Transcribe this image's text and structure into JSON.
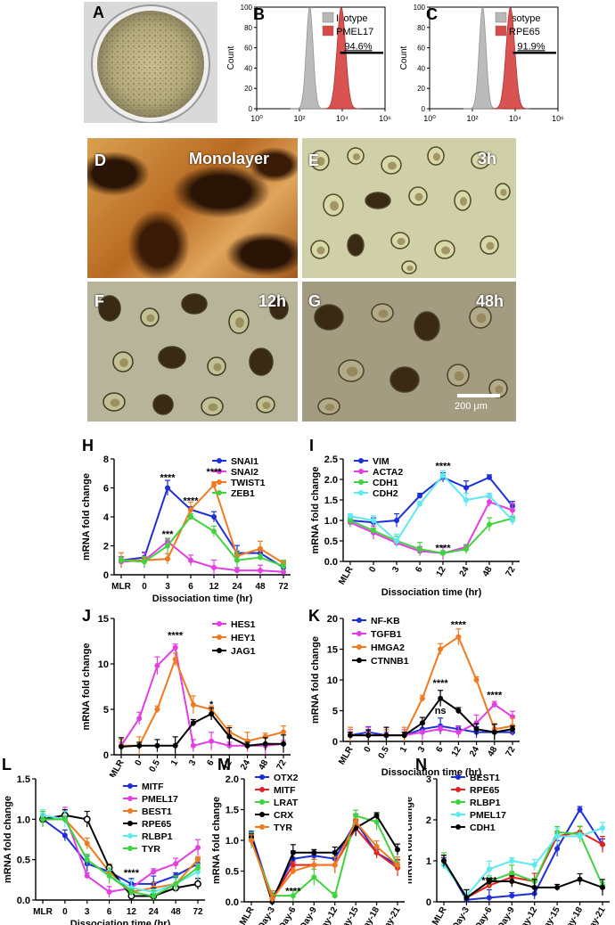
{
  "panel_letters": {
    "A": "A",
    "B": "B",
    "C": "C",
    "D": "D",
    "E": "E",
    "F": "F",
    "G": "G",
    "H": "H",
    "I": "I",
    "J": "J",
    "K": "K",
    "L": "L",
    "M": "M",
    "N": "N"
  },
  "micrographs": {
    "D": {
      "label": "Monolayer"
    },
    "E": {
      "label": "3h"
    },
    "F": {
      "label": "12h"
    },
    "G": {
      "label": "48h",
      "scale_bar": "200 μm"
    }
  },
  "colors": {
    "isotype": "#b8b8b8",
    "pmel17": "#d84a4a",
    "rpe65": "#d84a4a",
    "blue": "#1f2fd6",
    "magenta": "#e23ee2",
    "orange": "#f07a20",
    "green": "#3fd33f",
    "black": "#000000",
    "cyan": "#5ee8f0",
    "red": "#e62020"
  },
  "chart_data": [
    {
      "id": "B",
      "type": "area",
      "ylabel": "Count",
      "xscale": "log",
      "xlim": [
        1,
        1000000
      ],
      "xticks": [
        "10⁰",
        "10²",
        "10⁴",
        "10⁶"
      ],
      "yticks": [
        "0",
        "20",
        "40",
        "60",
        "80",
        "100"
      ],
      "series": [
        {
          "name": "Isotype",
          "peak_x": 300
        },
        {
          "name": "PMEL17",
          "peak_x": 9000
        }
      ],
      "annotation": "94.6%"
    },
    {
      "id": "C",
      "type": "area",
      "ylabel": "Count",
      "xscale": "log",
      "xlim": [
        1,
        1000000
      ],
      "xticks": [
        "10⁰",
        "10²",
        "10⁴",
        "10⁶"
      ],
      "yticks": [
        "0",
        "20",
        "40",
        "60",
        "80",
        "100"
      ],
      "series": [
        {
          "name": "Isotype",
          "peak_x": 300
        },
        {
          "name": "RPE65",
          "peak_x": 6000
        }
      ],
      "annotation": "91.9%"
    },
    {
      "id": "H",
      "type": "line",
      "xlabel": "Dissociation time (hr)",
      "ylabel": "mRNA fold change",
      "categories": [
        "MLR",
        "0",
        "3",
        "6",
        "12",
        "24",
        "48",
        "72"
      ],
      "ylim": [
        0,
        8
      ],
      "yticks": [
        "0",
        "2",
        "4",
        "6",
        "8"
      ],
      "series": [
        {
          "name": "SNAI1",
          "color": "#1f2fd6",
          "values": [
            1.0,
            1.2,
            6.0,
            4.5,
            4.0,
            1.5,
            1.5,
            0.5
          ]
        },
        {
          "name": "SNAI2",
          "color": "#e23ee2",
          "values": [
            0.9,
            1.0,
            2.3,
            1.0,
            0.5,
            0.3,
            0.3,
            0.2
          ]
        },
        {
          "name": "TWIST1",
          "color": "#f07a20",
          "values": [
            1.0,
            1.0,
            1.1,
            4.5,
            6.2,
            1.3,
            1.8,
            0.8
          ]
        },
        {
          "name": "ZEB1",
          "color": "#3fd33f",
          "values": [
            1.0,
            0.9,
            2.0,
            4.0,
            3.0,
            1.0,
            1.2,
            0.6
          ]
        }
      ],
      "annotations": [
        "****",
        "****",
        "****",
        "***"
      ]
    },
    {
      "id": "I",
      "type": "line",
      "xlabel": "Dissociation time (hr)",
      "ylabel": "mRNA fold change",
      "categories": [
        "MLR",
        "0",
        "3",
        "6",
        "12",
        "24",
        "48",
        "72"
      ],
      "ylim": [
        0,
        2.5
      ],
      "yticks": [
        "0.0",
        "0.5",
        "1.0",
        "1.5",
        "2.0",
        "2.5"
      ],
      "series": [
        {
          "name": "VIM",
          "color": "#1f2fd6",
          "values": [
            1.0,
            0.95,
            1.0,
            1.6,
            2.05,
            1.8,
            2.05,
            1.35
          ]
        },
        {
          "name": "ACTA2",
          "color": "#e23ee2",
          "values": [
            0.95,
            0.7,
            0.45,
            0.25,
            0.2,
            0.35,
            1.45,
            1.25
          ]
        },
        {
          "name": "CDH1",
          "color": "#3fd33f",
          "values": [
            1.0,
            0.75,
            0.5,
            0.3,
            0.2,
            0.3,
            0.9,
            1.05
          ]
        },
        {
          "name": "CDH2",
          "color": "#5ee8f0",
          "values": [
            1.1,
            1.0,
            0.5,
            1.4,
            2.1,
            1.5,
            1.6,
            1.0
          ]
        }
      ],
      "annotations": [
        "****",
        "****"
      ]
    },
    {
      "id": "J",
      "type": "line",
      "xlabel": "Dissociation time (hr)",
      "ylabel": "mRNA fold change",
      "categories": [
        "MLR",
        "0",
        "0.5",
        "1",
        "3",
        "6",
        "12",
        "24",
        "48",
        "72"
      ],
      "ylim": [
        0,
        15
      ],
      "yticks": [
        "0",
        "5",
        "10",
        "15"
      ],
      "series": [
        {
          "name": "HES1",
          "color": "#e23ee2",
          "values": [
            1.0,
            4.0,
            9.8,
            11.8,
            1.0,
            1.5,
            1.0,
            1.0,
            1.0,
            1.2
          ]
        },
        {
          "name": "HEY1",
          "color": "#f07a20",
          "values": [
            1.0,
            1.0,
            5.0,
            10.5,
            5.5,
            5.0,
            2.5,
            1.5,
            2.0,
            2.5
          ]
        },
        {
          "name": "JAG1",
          "color": "#000000",
          "values": [
            0.9,
            1.0,
            1.0,
            1.0,
            3.5,
            4.5,
            2.0,
            1.0,
            1.2,
            1.2
          ]
        }
      ],
      "annotations": [
        "****",
        "*"
      ]
    },
    {
      "id": "K",
      "type": "line",
      "xlabel": "Dissociation time (hr)",
      "ylabel": "mRNA fold change",
      "categories": [
        "MLR",
        "0",
        "0.5",
        "1",
        "3",
        "6",
        "12",
        "24",
        "48",
        "72"
      ],
      "ylim": [
        0,
        20
      ],
      "yticks": [
        "0",
        "5",
        "10",
        "15",
        "20"
      ],
      "series": [
        {
          "name": "NF-KB",
          "color": "#1f2fd6",
          "values": [
            1.0,
            1.5,
            1.0,
            1.0,
            2.0,
            2.5,
            2.0,
            1.5,
            1.5,
            1.5
          ]
        },
        {
          "name": "TGFB1",
          "color": "#e23ee2",
          "values": [
            1.0,
            1.0,
            1.0,
            1.0,
            1.5,
            2.0,
            1.5,
            3.0,
            6.0,
            4.0
          ]
        },
        {
          "name": "HMGA2",
          "color": "#f07a20",
          "values": [
            1.0,
            1.0,
            1.0,
            1.0,
            7.0,
            15.0,
            17.0,
            10.0,
            2.0,
            2.5
          ]
        },
        {
          "name": "CTNNB1",
          "color": "#000000",
          "values": [
            1.0,
            1.0,
            1.0,
            1.0,
            3.0,
            7.0,
            5.0,
            2.0,
            1.5,
            2.0
          ]
        }
      ],
      "annotations": [
        "****",
        "****",
        "ns",
        "****"
      ]
    },
    {
      "id": "L",
      "type": "line",
      "xlabel": "Dissociation time (hr)",
      "ylabel": "mRNA fold change",
      "categories": [
        "MLR",
        "0",
        "3",
        "6",
        "12",
        "24",
        "48",
        "72"
      ],
      "ylim": [
        0,
        1.5
      ],
      "yticks": [
        "0.0",
        "0.5",
        "1.0",
        "1.5"
      ],
      "series": [
        {
          "name": "MITF",
          "color": "#1f2fd6",
          "values": [
            1.0,
            0.8,
            0.45,
            0.35,
            0.2,
            0.2,
            0.3,
            0.45
          ]
        },
        {
          "name": "PMEL17",
          "color": "#e23ee2",
          "values": [
            1.0,
            1.05,
            0.3,
            0.1,
            0.15,
            0.35,
            0.45,
            0.65
          ]
        },
        {
          "name": "BEST1",
          "color": "#f07a20",
          "values": [
            1.0,
            1.0,
            0.7,
            0.35,
            0.1,
            0.15,
            0.2,
            0.5
          ]
        },
        {
          "name": "RPE65",
          "color": "#000000",
          "values": [
            1.0,
            1.05,
            1.0,
            0.4,
            0.05,
            0.05,
            0.15,
            0.2
          ]
        },
        {
          "name": "RLBP1",
          "color": "#5ee8f0",
          "values": [
            1.05,
            1.0,
            0.5,
            0.3,
            0.15,
            0.1,
            0.2,
            0.35
          ]
        },
        {
          "name": "TYR",
          "color": "#3fd33f",
          "values": [
            1.0,
            1.0,
            0.5,
            0.3,
            0.1,
            0.05,
            0.2,
            0.4
          ]
        }
      ],
      "annotations": [
        "****"
      ]
    },
    {
      "id": "M",
      "type": "line",
      "xlabel": "",
      "ylabel": "mRNA fold change",
      "categories": [
        "MLR",
        "Day-3",
        "Day-6",
        "Day-9",
        "Day-12",
        "Day-15",
        "Day-18",
        "Day-21"
      ],
      "ylim": [
        0,
        2.0
      ],
      "yticks": [
        "0.0",
        "0.5",
        "1.0",
        "1.5",
        "2.0"
      ],
      "series": [
        {
          "name": "OTX2",
          "color": "#1f2fd6",
          "values": [
            1.1,
            0.05,
            0.7,
            0.75,
            0.7,
            1.3,
            0.8,
            0.6
          ]
        },
        {
          "name": "MITF",
          "color": "#e62020",
          "values": [
            1.0,
            0.05,
            0.6,
            0.6,
            0.6,
            1.2,
            0.8,
            0.55
          ]
        },
        {
          "name": "LRAT",
          "color": "#3fd33f",
          "values": [
            1.0,
            0.1,
            0.1,
            0.4,
            0.1,
            1.4,
            1.3,
            0.6
          ]
        },
        {
          "name": "CRX",
          "color": "#000000",
          "values": [
            1.05,
            0.0,
            0.8,
            0.8,
            0.8,
            1.2,
            1.4,
            0.85
          ]
        },
        {
          "name": "TYR",
          "color": "#f07a20",
          "values": [
            1.0,
            0.05,
            0.5,
            0.6,
            0.6,
            1.3,
            0.9,
            0.6
          ]
        }
      ],
      "annotations": [
        "****"
      ]
    },
    {
      "id": "N",
      "type": "line",
      "xlabel": "",
      "ylabel": "mRNA fold change",
      "categories": [
        "MLR",
        "Day-3",
        "Day-6",
        "Day-9",
        "Day-12",
        "Day-15",
        "Day-18",
        "Day-21"
      ],
      "ylim": [
        0,
        3
      ],
      "yticks": [
        "0",
        "1",
        "2",
        "3"
      ],
      "series": [
        {
          "name": "BEST1",
          "color": "#1f2fd6",
          "values": [
            1.0,
            0.05,
            0.1,
            0.15,
            0.2,
            1.3,
            2.25,
            1.4
          ]
        },
        {
          "name": "RPE65",
          "color": "#e62020",
          "values": [
            1.0,
            0.1,
            0.4,
            0.6,
            0.5,
            1.6,
            1.7,
            1.4
          ]
        },
        {
          "name": "RLBP1",
          "color": "#3fd33f",
          "values": [
            1.0,
            0.1,
            0.5,
            0.7,
            0.5,
            1.7,
            1.65,
            0.4
          ]
        },
        {
          "name": "PMEL17",
          "color": "#5ee8f0",
          "values": [
            0.9,
            0.15,
            0.8,
            1.0,
            0.9,
            1.6,
            1.6,
            1.8
          ]
        },
        {
          "name": "CDH1",
          "color": "#000000",
          "values": [
            1.0,
            0.1,
            0.5,
            0.5,
            0.35,
            0.35,
            0.55,
            0.35
          ]
        }
      ],
      "annotations": [
        "****"
      ]
    }
  ]
}
